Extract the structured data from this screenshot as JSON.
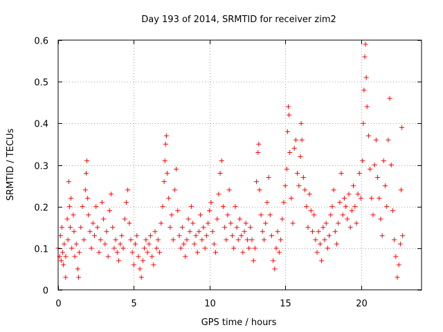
{
  "chart_data": {
    "type": "scatter",
    "title": "Day 193 of 2014, SRMTID for receiver zim2",
    "xlabel": "GPS time / hours",
    "ylabel": "SRMTID / TECUs",
    "xlim": [
      0,
      24
    ],
    "ylim": [
      0,
      0.6
    ],
    "xticks": [
      0,
      5,
      10,
      15,
      20
    ],
    "xtick_labels": [
      "0",
      "5",
      "10",
      "15",
      "20"
    ],
    "yticks": [
      0,
      0.1,
      0.2,
      0.3,
      0.4,
      0.5,
      0.6
    ],
    "ytick_labels": [
      "0",
      "0.1",
      "0.2",
      "0.3",
      "0.4",
      "0.5",
      "0.6"
    ],
    "grid": true,
    "marker": "+",
    "color": "#ff0000",
    "series": [
      {
        "name": "SRMTID",
        "points": [
          [
            0.0,
            0.1
          ],
          [
            0.1,
            0.08
          ],
          [
            0.15,
            0.13
          ],
          [
            0.2,
            0.07
          ],
          [
            0.25,
            0.15
          ],
          [
            0.3,
            0.09
          ],
          [
            0.35,
            0.06
          ],
          [
            0.4,
            0.11
          ],
          [
            0.5,
            0.08
          ],
          [
            0.5,
            0.03
          ],
          [
            0.6,
            0.17
          ],
          [
            0.65,
            0.12
          ],
          [
            0.7,
            0.26
          ],
          [
            0.75,
            0.2
          ],
          [
            0.8,
            0.15
          ],
          [
            0.85,
            0.22
          ],
          [
            0.9,
            0.1
          ],
          [
            1.0,
            0.18
          ],
          [
            1.05,
            0.14
          ],
          [
            1.1,
            0.08
          ],
          [
            1.2,
            0.11
          ],
          [
            1.3,
            0.05
          ],
          [
            1.35,
            0.03
          ],
          [
            1.4,
            0.09
          ],
          [
            1.5,
            0.15
          ],
          [
            1.6,
            0.2
          ],
          [
            1.7,
            0.12
          ],
          [
            1.8,
            0.24
          ],
          [
            1.85,
            0.28
          ],
          [
            1.9,
            0.31
          ],
          [
            1.95,
            0.22
          ],
          [
            2.0,
            0.18
          ],
          [
            2.1,
            0.14
          ],
          [
            2.2,
            0.1
          ],
          [
            2.3,
            0.16
          ],
          [
            2.4,
            0.13
          ],
          [
            2.5,
            0.2
          ],
          [
            2.6,
            0.15
          ],
          [
            2.7,
            0.09
          ],
          [
            2.8,
            0.12
          ],
          [
            2.9,
            0.21
          ],
          [
            3.0,
            0.17
          ],
          [
            3.1,
            0.11
          ],
          [
            3.2,
            0.14
          ],
          [
            3.3,
            0.08
          ],
          [
            3.4,
            0.19
          ],
          [
            3.5,
            0.23
          ],
          [
            3.6,
            0.15
          ],
          [
            3.7,
            0.1
          ],
          [
            3.8,
            0.12
          ],
          [
            3.9,
            0.09
          ],
          [
            4.0,
            0.07
          ],
          [
            4.1,
            0.11
          ],
          [
            4.2,
            0.13
          ],
          [
            4.3,
            0.1
          ],
          [
            4.4,
            0.17
          ],
          [
            4.5,
            0.21
          ],
          [
            4.6,
            0.24
          ],
          [
            4.7,
            0.16
          ],
          [
            4.8,
            0.12
          ],
          [
            4.9,
            0.09
          ],
          [
            5.0,
            0.06
          ],
          [
            5.1,
            0.11
          ],
          [
            5.2,
            0.13
          ],
          [
            5.3,
            0.08
          ],
          [
            5.4,
            0.05
          ],
          [
            5.5,
            0.03
          ],
          [
            5.6,
            0.07
          ],
          [
            5.7,
            0.1
          ],
          [
            5.8,
            0.12
          ],
          [
            5.9,
            0.09
          ],
          [
            6.0,
            0.11
          ],
          [
            6.1,
            0.13
          ],
          [
            6.2,
            0.08
          ],
          [
            6.3,
            0.06
          ],
          [
            6.4,
            0.14
          ],
          [
            6.5,
            0.1
          ],
          [
            6.6,
            0.12
          ],
          [
            6.7,
            0.09
          ],
          [
            6.8,
            0.16
          ],
          [
            6.9,
            0.2
          ],
          [
            7.0,
            0.26
          ],
          [
            7.05,
            0.31
          ],
          [
            7.1,
            0.35
          ],
          [
            7.15,
            0.37
          ],
          [
            7.2,
            0.28
          ],
          [
            7.3,
            0.22
          ],
          [
            7.4,
            0.15
          ],
          [
            7.5,
            0.18
          ],
          [
            7.6,
            0.12
          ],
          [
            7.7,
            0.24
          ],
          [
            7.8,
            0.29
          ],
          [
            7.9,
            0.19
          ],
          [
            8.0,
            0.13
          ],
          [
            8.1,
            0.1
          ],
          [
            8.2,
            0.15
          ],
          [
            8.3,
            0.11
          ],
          [
            8.4,
            0.08
          ],
          [
            8.5,
            0.12
          ],
          [
            8.6,
            0.17
          ],
          [
            8.7,
            0.14
          ],
          [
            8.8,
            0.2
          ],
          [
            8.9,
            0.16
          ],
          [
            9.0,
            0.11
          ],
          [
            9.1,
            0.13
          ],
          [
            9.2,
            0.09
          ],
          [
            9.3,
            0.14
          ],
          [
            9.4,
            0.18
          ],
          [
            9.5,
            0.12
          ],
          [
            9.6,
            0.15
          ],
          [
            9.7,
            0.1
          ],
          [
            9.8,
            0.13
          ],
          [
            9.9,
            0.16
          ],
          [
            10.0,
            0.19
          ],
          [
            10.1,
            0.21
          ],
          [
            10.2,
            0.14
          ],
          [
            10.3,
            0.11
          ],
          [
            10.4,
            0.09
          ],
          [
            10.5,
            0.17
          ],
          [
            10.6,
            0.23
          ],
          [
            10.7,
            0.28
          ],
          [
            10.8,
            0.31
          ],
          [
            10.9,
            0.2
          ],
          [
            11.0,
            0.15
          ],
          [
            11.1,
            0.12
          ],
          [
            11.2,
            0.18
          ],
          [
            11.3,
            0.24
          ],
          [
            11.4,
            0.16
          ],
          [
            11.5,
            0.13
          ],
          [
            11.6,
            0.1
          ],
          [
            11.7,
            0.2
          ],
          [
            11.8,
            0.15
          ],
          [
            11.9,
            0.12
          ],
          [
            12.0,
            0.17
          ],
          [
            12.1,
            0.13
          ],
          [
            12.2,
            0.09
          ],
          [
            12.3,
            0.14
          ],
          [
            12.4,
            0.16
          ],
          [
            12.5,
            0.12
          ],
          [
            12.6,
            0.1
          ],
          [
            12.7,
            0.15
          ],
          [
            12.8,
            0.12
          ],
          [
            12.9,
            0.07
          ],
          [
            13.0,
            0.1
          ],
          [
            13.1,
            0.26
          ],
          [
            13.2,
            0.33
          ],
          [
            13.25,
            0.35
          ],
          [
            13.3,
            0.24
          ],
          [
            13.4,
            0.18
          ],
          [
            13.5,
            0.14
          ],
          [
            13.6,
            0.12
          ],
          [
            13.7,
            0.16
          ],
          [
            13.8,
            0.21
          ],
          [
            13.9,
            0.27
          ],
          [
            14.0,
            0.18
          ],
          [
            14.1,
            0.13
          ],
          [
            14.2,
            0.07
          ],
          [
            14.3,
            0.05
          ],
          [
            14.4,
            0.1
          ],
          [
            14.5,
            0.14
          ],
          [
            14.6,
            0.09
          ],
          [
            14.7,
            0.12
          ],
          [
            14.8,
            0.17
          ],
          [
            14.9,
            0.21
          ],
          [
            15.0,
            0.25
          ],
          [
            15.1,
            0.29
          ],
          [
            15.15,
            0.38
          ],
          [
            15.2,
            0.44
          ],
          [
            15.25,
            0.42
          ],
          [
            15.3,
            0.33
          ],
          [
            15.4,
            0.22
          ],
          [
            15.5,
            0.16
          ],
          [
            15.6,
            0.34
          ],
          [
            15.7,
            0.36
          ],
          [
            15.8,
            0.28
          ],
          [
            15.9,
            0.25
          ],
          [
            16.0,
            0.32
          ],
          [
            16.05,
            0.4
          ],
          [
            16.1,
            0.36
          ],
          [
            16.2,
            0.27
          ],
          [
            16.3,
            0.24
          ],
          [
            16.4,
            0.2
          ],
          [
            16.5,
            0.15
          ],
          [
            16.6,
            0.23
          ],
          [
            16.7,
            0.19
          ],
          [
            16.8,
            0.14
          ],
          [
            16.9,
            0.18
          ],
          [
            17.0,
            0.12
          ],
          [
            17.1,
            0.09
          ],
          [
            17.2,
            0.14
          ],
          [
            17.3,
            0.11
          ],
          [
            17.4,
            0.07
          ],
          [
            17.5,
            0.15
          ],
          [
            17.6,
            0.12
          ],
          [
            17.7,
            0.16
          ],
          [
            17.8,
            0.1
          ],
          [
            17.9,
            0.13
          ],
          [
            18.0,
            0.18
          ],
          [
            18.1,
            0.2
          ],
          [
            18.2,
            0.24
          ],
          [
            18.3,
            0.14
          ],
          [
            18.4,
            0.11
          ],
          [
            18.5,
            0.16
          ],
          [
            18.6,
            0.21
          ],
          [
            18.7,
            0.28
          ],
          [
            18.8,
            0.18
          ],
          [
            18.9,
            0.22
          ],
          [
            19.0,
            0.2
          ],
          [
            19.1,
            0.17
          ],
          [
            19.2,
            0.23
          ],
          [
            19.3,
            0.15
          ],
          [
            19.4,
            0.19
          ],
          [
            19.5,
            0.25
          ],
          [
            19.6,
            0.2
          ],
          [
            19.7,
            0.16
          ],
          [
            19.8,
            0.23
          ],
          [
            19.9,
            0.28
          ],
          [
            20.0,
            0.22
          ],
          [
            20.1,
            0.31
          ],
          [
            20.15,
            0.4
          ],
          [
            20.2,
            0.48
          ],
          [
            20.25,
            0.56
          ],
          [
            20.3,
            0.59
          ],
          [
            20.35,
            0.51
          ],
          [
            20.4,
            0.44
          ],
          [
            20.5,
            0.37
          ],
          [
            20.6,
            0.29
          ],
          [
            20.7,
            0.22
          ],
          [
            20.8,
            0.18
          ],
          [
            20.9,
            0.3
          ],
          [
            21.0,
            0.36
          ],
          [
            21.1,
            0.27
          ],
          [
            21.2,
            0.22
          ],
          [
            21.3,
            0.17
          ],
          [
            21.4,
            0.13
          ],
          [
            21.5,
            0.31
          ],
          [
            21.6,
            0.25
          ],
          [
            21.7,
            0.2
          ],
          [
            21.8,
            0.36
          ],
          [
            21.9,
            0.46
          ],
          [
            22.0,
            0.3
          ],
          [
            22.1,
            0.19
          ],
          [
            22.2,
            0.12
          ],
          [
            22.3,
            0.08
          ],
          [
            22.4,
            0.03
          ],
          [
            22.5,
            0.06
          ],
          [
            22.6,
            0.11
          ],
          [
            22.65,
            0.24
          ],
          [
            22.7,
            0.39
          ],
          [
            22.75,
            0.13
          ]
        ]
      }
    ]
  }
}
